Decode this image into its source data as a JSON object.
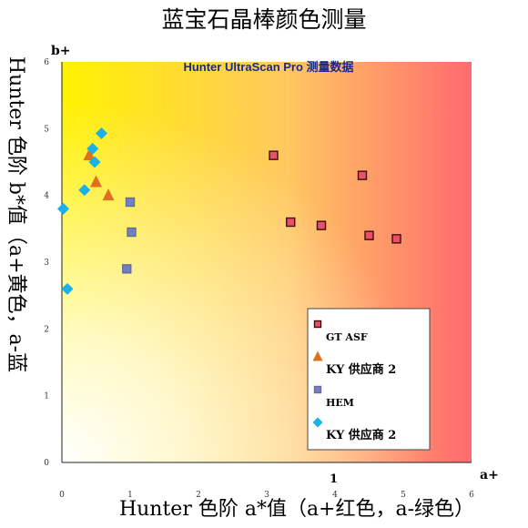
{
  "chart_data": {
    "type": "scatter",
    "title": "蓝宝石晶棒颜色测量",
    "subtitle": "Hunter UltraScan Pro 测量数据",
    "xlabel": "Hunter 色阶 a*值（a+红色，a-绿色）",
    "ylabel": "Hunter 色阶 b*值（a+黄色，a-蓝",
    "x_axis_end_label": "a+",
    "y_axis_end_label": "b+",
    "extra_x_label": "1",
    "xlim": [
      0,
      6
    ],
    "ylim": [
      0,
      6
    ],
    "x_ticks": [
      "0",
      "1",
      "2",
      "3",
      "4",
      "5",
      "6"
    ],
    "y_ticks": [
      "0",
      "1",
      "2",
      "3",
      "4",
      "5",
      "6"
    ],
    "background": "gradient white (bottom-left) to yellow (top-left) to red (bottom-right)",
    "legend_position": "right-middle",
    "series": [
      {
        "name": "GT ASF",
        "marker": "square",
        "color": "#e8506a",
        "edge": "#3a1010",
        "points": [
          [
            3.1,
            4.6
          ],
          [
            3.35,
            3.6
          ],
          [
            3.8,
            3.55
          ],
          [
            4.4,
            4.3
          ],
          [
            4.5,
            3.4
          ],
          [
            4.9,
            3.35
          ]
        ]
      },
      {
        "name": "KY 供应商 2",
        "marker": "triangle",
        "color": "#e07020",
        "points": [
          [
            0.4,
            4.6
          ],
          [
            0.5,
            4.2
          ],
          [
            0.68,
            4.0
          ]
        ]
      },
      {
        "name": "HEM",
        "marker": "square",
        "color": "#7080c0",
        "edge": "#6a6a9a",
        "points": [
          [
            1.0,
            3.9
          ],
          [
            1.02,
            3.45
          ],
          [
            0.95,
            2.9
          ]
        ]
      },
      {
        "name": "KY 供应商 2",
        "marker": "diamond",
        "color": "#1ab0e8",
        "points": [
          [
            0.58,
            4.93
          ],
          [
            0.45,
            4.7
          ],
          [
            0.48,
            4.5
          ],
          [
            0.33,
            4.08
          ],
          [
            0.02,
            3.8
          ],
          [
            0.08,
            2.6
          ]
        ]
      }
    ]
  }
}
